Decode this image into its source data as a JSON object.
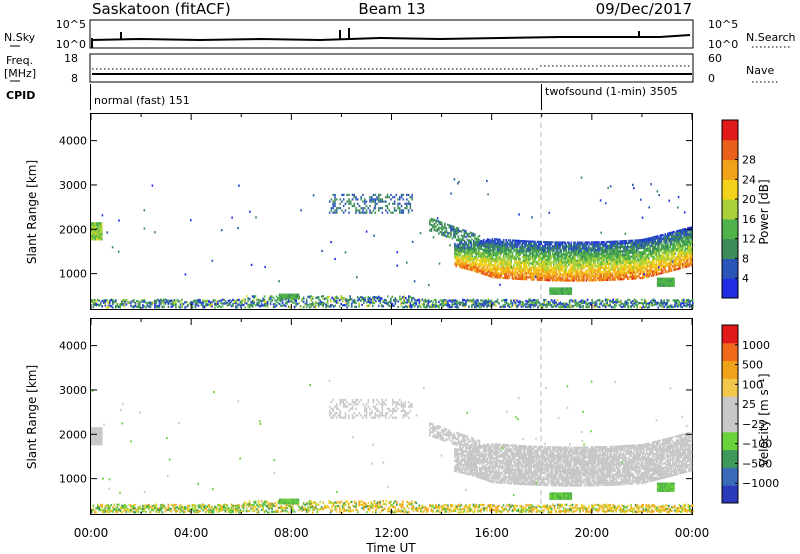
{
  "header": {
    "title_left": "Saskatoon (fitACF)",
    "title_center": "Beam 13",
    "title_right": "09/Dec/2017"
  },
  "sky_panel": {
    "left_label": "N.Sky",
    "right_label": "N.Search",
    "left_ticks": [
      "10^5",
      "10^0"
    ],
    "right_ticks": [
      "10^5",
      "10^0"
    ]
  },
  "freq_panel": {
    "left_label_1": "Freq.",
    "left_label_2": "[MHz]",
    "right_label": "Nave",
    "left_ticks": [
      "18",
      "8"
    ],
    "right_ticks": [
      "60",
      "0"
    ]
  },
  "cpid_panel": {
    "label": "CPID",
    "mode_1": "normal (fast) 151",
    "mode_2": "twofsound (1-min) 3505"
  },
  "colors": {
    "power_scale": [
      "#1e2ee0",
      "#2a55b8",
      "#3d8a5a",
      "#4fb24a",
      "#a9d23a",
      "#f2d21a",
      "#f0a21a",
      "#e8601a",
      "#e01a1a"
    ],
    "velocity_scale": [
      "#e01a1a",
      "#f06a1a",
      "#f0a21a",
      "#f2c84a",
      "#c8c8c8",
      "#c8c8c8",
      "#6ad23a",
      "#3d9a5a",
      "#3a6ab8",
      "#2a3ab8"
    ]
  },
  "chart_data": [
    {
      "type": "heatmap",
      "ylabel": "Slant Range [km]",
      "yticks": [
        "1000",
        "2000",
        "3000",
        "4000"
      ],
      "ylim": [
        180,
        4600
      ],
      "xlim": [
        0,
        24
      ],
      "colorbar_label": "Power [dB]",
      "colorbar_ticks": [
        "4",
        "8",
        "12",
        "16",
        "20",
        "24",
        "28"
      ],
      "colorbar_range": [
        0,
        32
      ],
      "regions": [
        {
          "name": "near-range band",
          "x": [
            0,
            24
          ],
          "y": [
            200,
            450
          ],
          "value": 10
        },
        {
          "name": "main echo band",
          "x": [
            14.5,
            24
          ],
          "y": [
            900,
            1950
          ],
          "value": 18
        },
        {
          "name": "upper patch",
          "x": [
            9.5,
            12.5
          ],
          "y": [
            2300,
            2800
          ],
          "value": 8
        },
        {
          "name": "early patch",
          "x": [
            0,
            0.4
          ],
          "y": [
            1750,
            2150
          ],
          "value": 14
        }
      ]
    },
    {
      "type": "heatmap",
      "ylabel": "Slant Range [km]",
      "xlabel": "Time UT",
      "xticks": [
        "00:00",
        "04:00",
        "08:00",
        "12:00",
        "16:00",
        "20:00",
        "00:00"
      ],
      "yticks": [
        "1000",
        "2000",
        "3000",
        "4000"
      ],
      "ylim": [
        180,
        4600
      ],
      "xlim": [
        0,
        24
      ],
      "colorbar_label": "Velocity [m s⁻¹]",
      "colorbar_ticks": [
        "1000",
        "500",
        "100",
        "25",
        "−25",
        "−100",
        "−500",
        "−1000"
      ],
      "regions": [
        {
          "name": "near-range band",
          "x": [
            0,
            24
          ],
          "y": [
            200,
            450
          ],
          "value": -100
        },
        {
          "name": "main echo band",
          "x": [
            14.5,
            24
          ],
          "y": [
            1000,
            2000
          ],
          "value": 0
        },
        {
          "name": "upper patch",
          "x": [
            9.5,
            12.5
          ],
          "y": [
            2300,
            2800
          ],
          "value": 0
        }
      ]
    }
  ]
}
